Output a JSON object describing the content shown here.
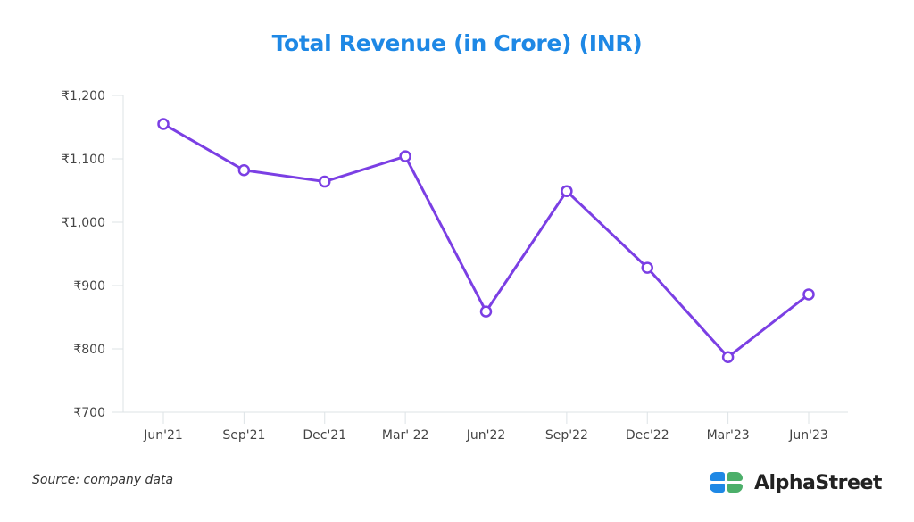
{
  "chart_data": {
    "type": "line",
    "title": "Total Revenue (in Crore) (INR)",
    "xlabel": "",
    "ylabel": "",
    "categories": [
      "Jun'21",
      "Sep'21",
      "Dec'21",
      "Mar' 22",
      "Jun'22",
      "Sep'22",
      "Dec'22",
      "Mar'23",
      "Jun'23"
    ],
    "series": [
      {
        "name": "Total Revenue",
        "color": "#7b3fe4",
        "values": [
          1155,
          1082,
          1064,
          1104,
          859,
          1049,
          928,
          787,
          886
        ]
      }
    ],
    "ylim": [
      700,
      1200
    ],
    "yticks": [
      700,
      800,
      900,
      1000,
      1100,
      1200
    ],
    "ytick_labels": [
      "₹700",
      "₹800",
      "₹900",
      "₹1,000",
      "₹1,100",
      "₹1,200"
    ],
    "grid": false,
    "legend": "none"
  },
  "footer": {
    "source": "Source: company data",
    "brand": "AlphaStreet"
  },
  "colors": {
    "title": "#1e88e5",
    "line": "#7b3fe4",
    "axis": "#dde3e6",
    "brand_blue": "#1e88e5",
    "brand_green": "#4caf6a"
  }
}
